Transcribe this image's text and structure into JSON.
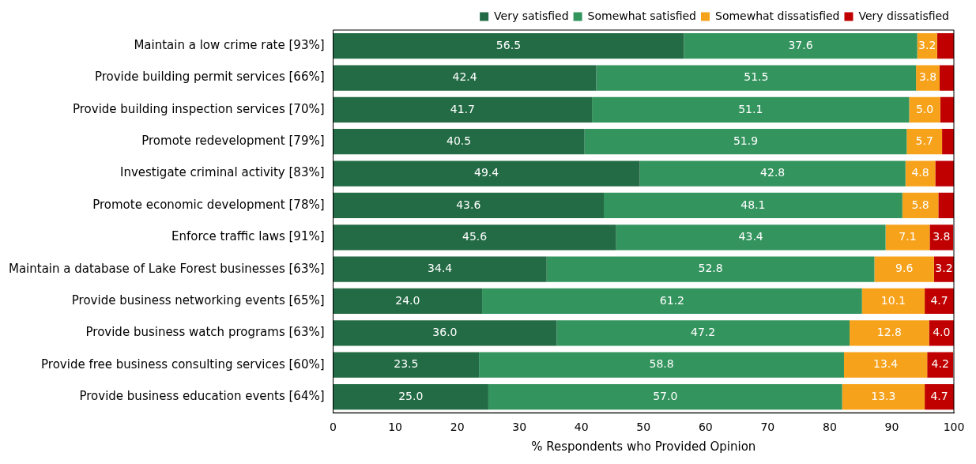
{
  "chart_data": {
    "type": "bar",
    "orientation": "horizontal",
    "stacked": true,
    "xlabel": "% Respondents who Provided Opinion",
    "xlim": [
      0,
      100
    ],
    "xticks": [
      0,
      10,
      20,
      30,
      40,
      50,
      60,
      70,
      80,
      90,
      100
    ],
    "grid": false,
    "legend": "top right",
    "categories": [
      "Maintain a low crime rate [93%]",
      "Provide building permit services [66%]",
      "Provide building inspection services [70%]",
      "Promote redevelopment [79%]",
      "Investigate criminal activity [83%]",
      "Promote economic development [78%]",
      "Enforce traffic laws [91%]",
      "Maintain a database of Lake Forest businesses [63%]",
      "Provide business networking events [65%]",
      "Provide business watch programs [63%]",
      "Provide free business consulting services [60%]",
      "Provide business education events [64%]"
    ],
    "series": [
      {
        "name": "Very satisfied",
        "color": "#236b45",
        "values": [
          56.5,
          42.4,
          41.7,
          40.5,
          49.4,
          43.6,
          45.6,
          34.4,
          24.0,
          36.0,
          23.5,
          25.0
        ],
        "value_labels": [
          "56.5",
          "42.4",
          "41.7",
          "40.5",
          "49.4",
          "43.6",
          "45.6",
          "34.4",
          "24.0",
          "36.0",
          "23.5",
          "25.0"
        ]
      },
      {
        "name": "Somewhat satisfied",
        "color": "#34945e",
        "values": [
          37.6,
          51.5,
          51.1,
          51.9,
          42.8,
          48.1,
          43.4,
          52.8,
          61.2,
          47.2,
          58.8,
          57.0
        ],
        "value_labels": [
          "37.6",
          "51.5",
          "51.1",
          "51.9",
          "42.8",
          "48.1",
          "43.4",
          "52.8",
          "61.2",
          "47.2",
          "58.8",
          "57.0"
        ]
      },
      {
        "name": "Somewhat dissatisfied",
        "color": "#f7a21b",
        "values": [
          3.2,
          3.8,
          5.0,
          5.7,
          4.8,
          5.8,
          7.1,
          9.6,
          10.1,
          12.8,
          13.4,
          13.3
        ],
        "value_labels": [
          "3.2",
          "3.8",
          "5.0",
          "5.7",
          "4.8",
          "5.8",
          "7.1",
          "9.6",
          "10.1",
          "12.8",
          "13.4",
          "13.3"
        ]
      },
      {
        "name": "Very dissatisfied",
        "color": "#c00000",
        "values": [
          2.7,
          2.3,
          2.2,
          1.9,
          3.0,
          2.5,
          3.8,
          3.2,
          4.7,
          4.0,
          4.2,
          4.7
        ],
        "value_labels": [
          null,
          null,
          null,
          null,
          null,
          null,
          "3.8",
          "3.2",
          "4.7",
          "4.0",
          "4.2",
          "4.7"
        ]
      }
    ]
  }
}
